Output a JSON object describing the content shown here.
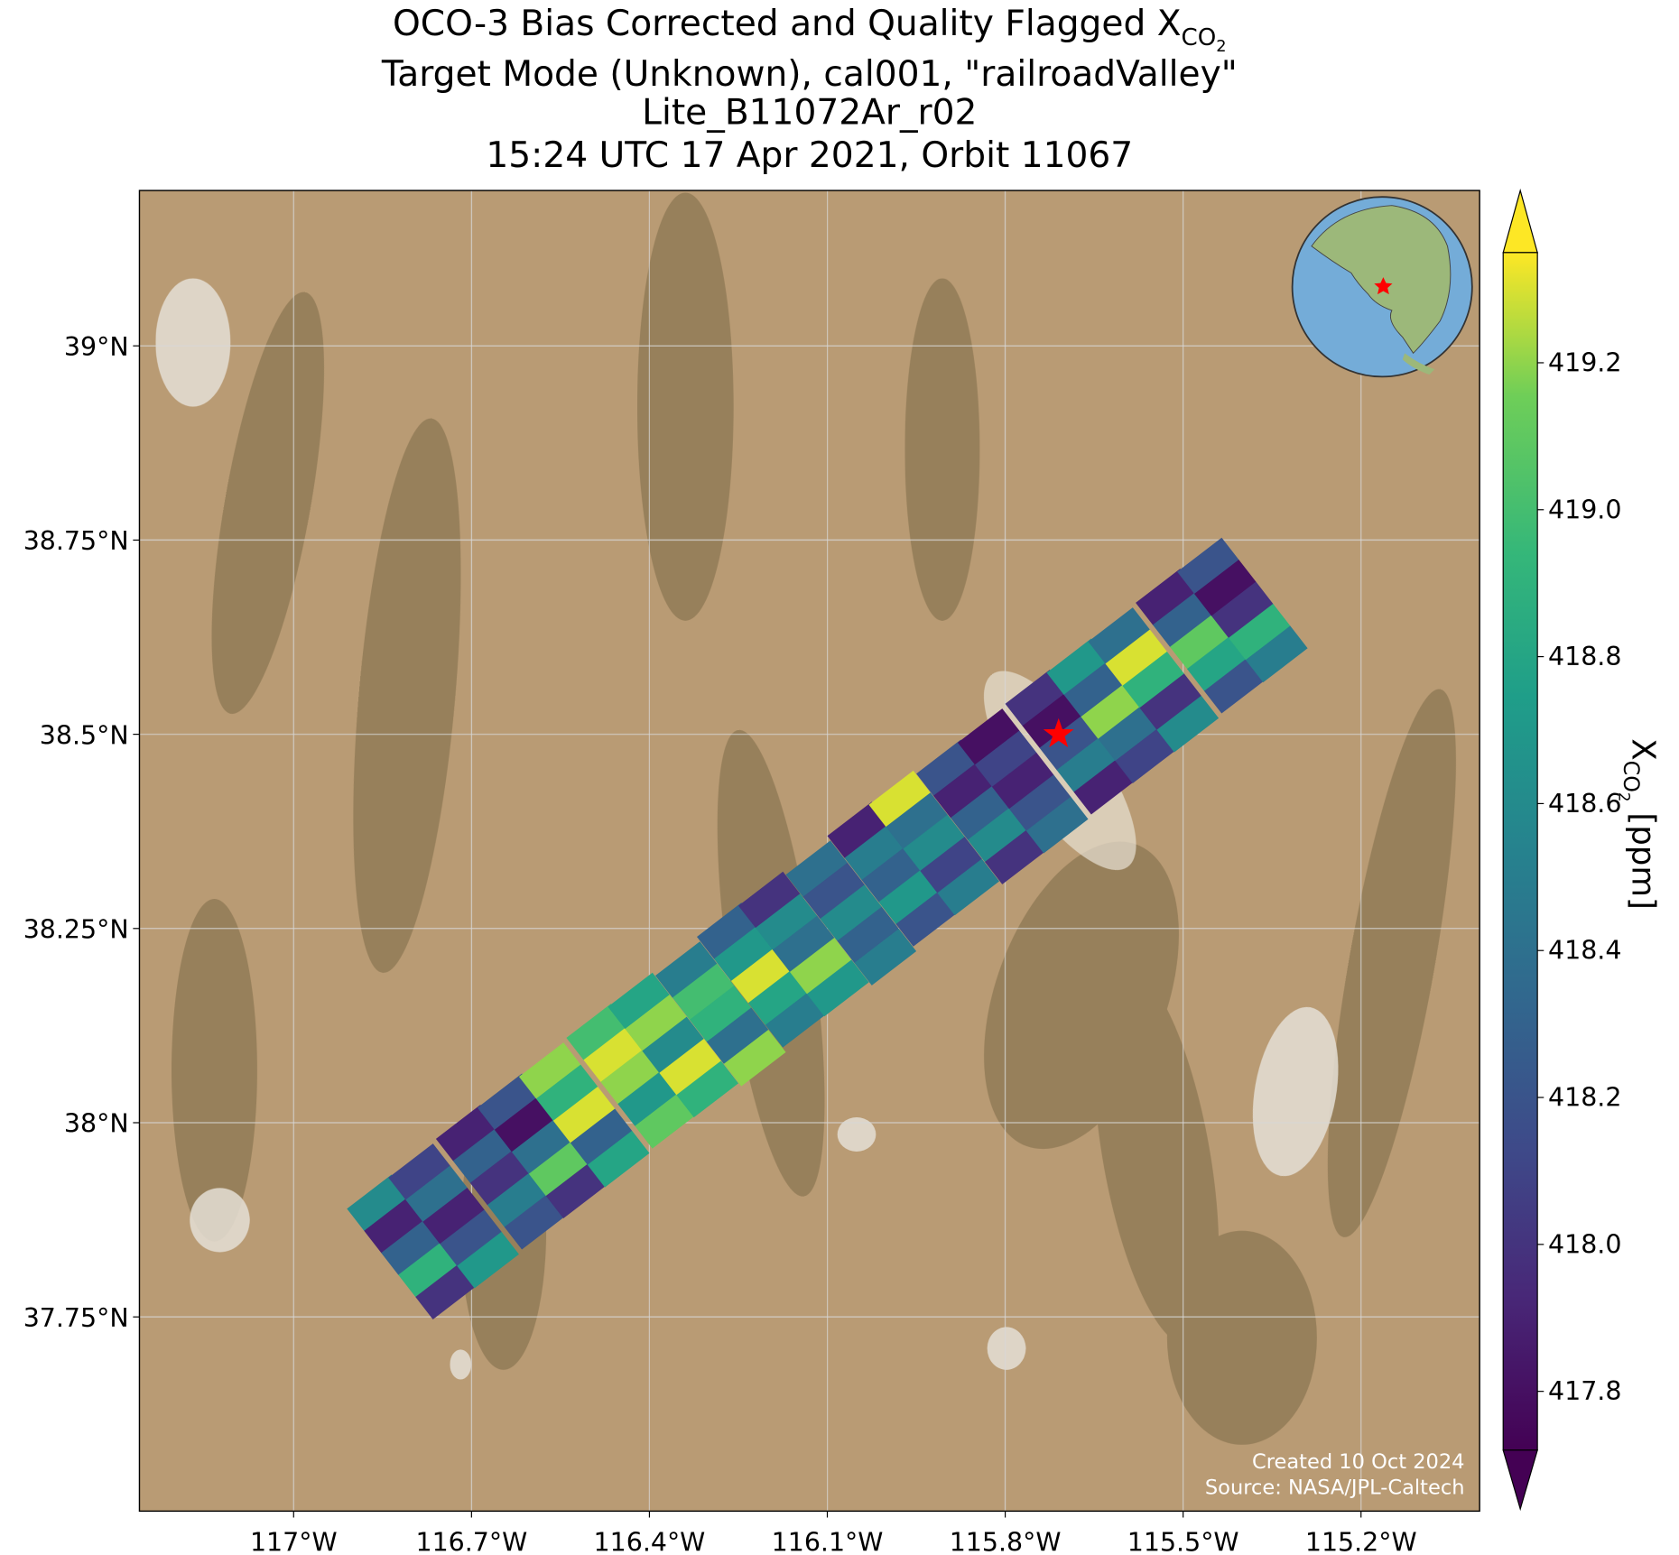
{
  "chart_data": {
    "type": "swath",
    "title": {
      "line1": "OCO-3 Bias Corrected and Quality Flagged X",
      "line1_sub": "CO",
      "line1_subsub": "2",
      "line2": "Target Mode (Unknown), cal001, \"railroadValley\"",
      "line3": "Lite_B11072Ar_r02",
      "line4": "15:24 UTC 17 Apr 2021, Orbit 11067"
    },
    "xlim": [
      -117.26,
      -115.0
    ],
    "ylim": [
      37.5,
      39.2
    ],
    "xticks": [
      {
        "value": -117,
        "label": "117°W"
      },
      {
        "value": -116.7,
        "label": "116.7°W"
      },
      {
        "value": -116.4,
        "label": "116.4°W"
      },
      {
        "value": -116.1,
        "label": "116.1°W"
      },
      {
        "value": -115.8,
        "label": "115.8°W"
      },
      {
        "value": -115.5,
        "label": "115.5°W"
      },
      {
        "value": -115.2,
        "label": "115.2°W"
      }
    ],
    "yticks": [
      {
        "value": 37.75,
        "label": "37.75°N"
      },
      {
        "value": 38,
        "label": "38°N"
      },
      {
        "value": 38.25,
        "label": "38.25°N"
      },
      {
        "value": 38.5,
        "label": "38.5°N"
      },
      {
        "value": 38.75,
        "label": "38.75°N"
      },
      {
        "value": 39,
        "label": "39°N"
      }
    ],
    "grid": true,
    "colormap": "viridis",
    "clim": [
      417.72,
      419.35
    ],
    "cticks": [
      417.8,
      {
        "value": 418,
        "label": "418.0"
      },
      418.2,
      418.4,
      418.6,
      418.8,
      {
        "value": 419,
        "label": "419.0"
      },
      419.2
    ],
    "colorbar_label": {
      "base": "X",
      "sub": "CO",
      "subsub": "2",
      "unit": "[ppm]"
    },
    "row_lon": [
      -116.8,
      -116.73,
      -116.65,
      -116.58,
      -116.51,
      -116.43,
      -116.36,
      -116.28,
      -116.21,
      -116.14,
      -116.06,
      -115.99,
      -115.92,
      -115.84,
      -115.77,
      -115.69,
      -115.62,
      -115.55,
      -115.47,
      -115.4
    ],
    "row_lat": [
      37.84,
      37.88,
      37.93,
      37.97,
      38.01,
      38.06,
      38.1,
      38.14,
      38.19,
      38.23,
      38.27,
      38.32,
      38.36,
      38.4,
      38.44,
      38.49,
      38.53,
      38.57,
      38.62,
      38.66
    ],
    "values": [
      [
        418.6,
        417.9,
        418.3,
        418.9,
        418.0
      ],
      [
        418.1,
        418.4,
        417.9,
        418.2,
        418.7
      ],
      [
        417.9,
        418.3,
        418.0,
        418.5,
        418.2
      ],
      [
        418.2,
        417.8,
        418.4,
        419.1,
        418.0
      ],
      [
        419.2,
        418.9,
        419.3,
        418.3,
        418.8
      ],
      [
        419.0,
        419.3,
        419.2,
        418.7,
        419.1
      ],
      [
        418.8,
        419.2,
        418.6,
        419.3,
        418.9
      ],
      [
        418.5,
        419.0,
        418.9,
        418.4,
        419.2
      ],
      [
        418.3,
        418.7,
        419.3,
        418.8,
        418.5
      ],
      [
        418.0,
        418.6,
        418.4,
        419.2,
        418.7
      ],
      [
        418.4,
        418.2,
        418.6,
        418.3,
        418.5
      ],
      [
        417.9,
        418.5,
        418.3,
        418.7,
        418.2
      ],
      [
        419.3,
        418.4,
        418.6,
        418.1,
        418.5
      ],
      [
        418.2,
        417.9,
        418.3,
        418.6,
        418.0
      ],
      [
        417.8,
        418.1,
        417.9,
        418.2,
        418.4
      ],
      [
        418.0,
        417.8,
        418.2,
        418.5,
        417.9
      ],
      [
        418.7,
        418.3,
        419.2,
        418.4,
        418.1
      ],
      [
        418.4,
        419.3,
        418.9,
        418.0,
        418.6
      ],
      [
        417.9,
        418.3,
        419.1,
        418.8,
        418.2
      ],
      [
        418.2,
        417.8,
        418.0,
        418.9,
        418.5
      ]
    ],
    "target": {
      "lon": -115.71,
      "lat": 38.5
    },
    "footer": {
      "created": "Created 10 Oct 2024",
      "source": "Source: NASA/JPL-Caltech"
    }
  }
}
